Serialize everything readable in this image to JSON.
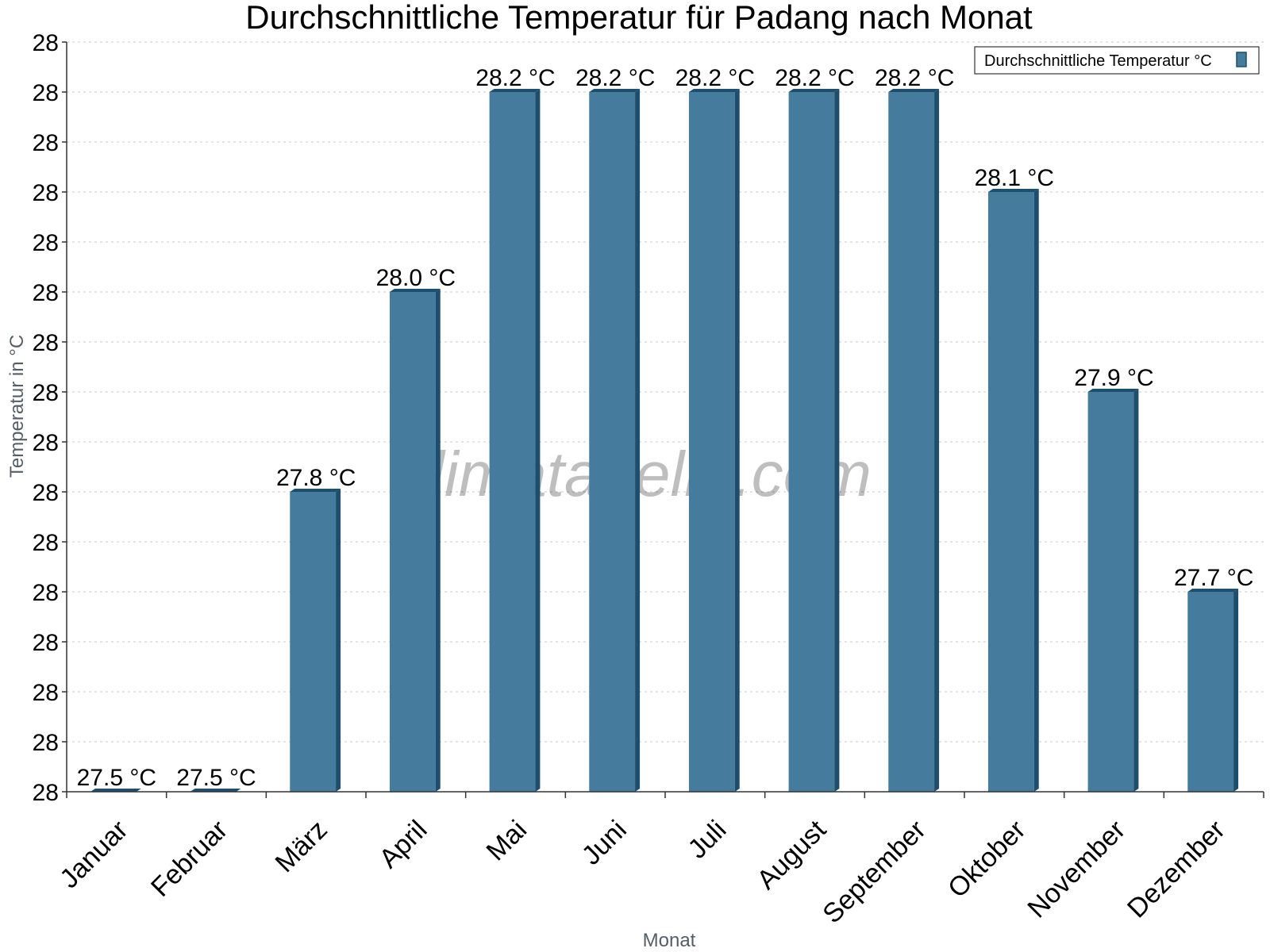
{
  "chart_data": {
    "type": "bar",
    "title": "Durchschnittliche Temperatur für Padang nach Monat",
    "xlabel": "Monat",
    "ylabel": "Temperatur in °C",
    "categories": [
      "Januar",
      "Februar",
      "März",
      "April",
      "Mai",
      "Juni",
      "Juli",
      "August",
      "September",
      "Oktober",
      "November",
      "Dezember"
    ],
    "series": [
      {
        "name": "Durchschnittliche Temperatur °C",
        "values": [
          27.5,
          27.5,
          27.8,
          28.0,
          28.2,
          28.2,
          28.2,
          28.2,
          28.2,
          28.1,
          27.9,
          27.7
        ],
        "labels": [
          "27.5 °C",
          "27.5 °C",
          "27.8 °C",
          "28.0 °C",
          "28.2 °C",
          "28.2 °C",
          "28.2 °C",
          "28.2 °C",
          "28.2 °C",
          "28.1 °C",
          "27.9 °C",
          "27.7 °C"
        ]
      }
    ],
    "ylim": [
      27.5,
      28.25
    ],
    "yticks": [
      27.5,
      27.55,
      27.6,
      27.65,
      27.7,
      27.75,
      27.8,
      27.85,
      27.9,
      27.95,
      28.0,
      28.05,
      28.1,
      28.15,
      28.2,
      28.25
    ],
    "ytick_labels": [
      "28",
      "28",
      "28",
      "28",
      "28",
      "28",
      "28",
      "28",
      "28",
      "28",
      "28",
      "28",
      "28",
      "28",
      "28",
      "28"
    ],
    "grid": true,
    "legend_position": "top-right",
    "watermark": "klimatabelle.com",
    "colors": {
      "bar": "#457b9d",
      "bar_side": "#1d4e6e",
      "bar_top": "#1d4e6e"
    }
  }
}
